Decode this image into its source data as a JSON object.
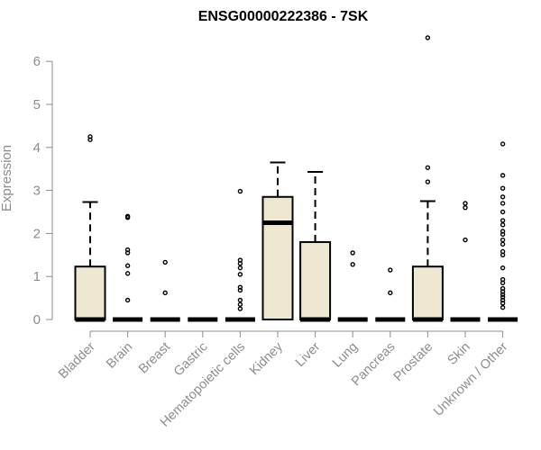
{
  "chart_data": {
    "type": "boxplot",
    "title": "ENSG00000222386 - 7SK",
    "ylabel": "Expression",
    "xlabel": "",
    "ylim": [
      0,
      6.6
    ],
    "yticks": [
      0,
      1,
      2,
      3,
      4,
      5,
      6
    ],
    "box_fill": "#eee8d0",
    "categories": [
      "Bladder",
      "Brain",
      "Breast",
      "Gastric",
      "Hematopoietic cells",
      "Kidney",
      "Liver",
      "Lung",
      "Pancreas",
      "Prostate",
      "Skin",
      "Unknown / Other"
    ],
    "boxes": [
      {
        "q1": 0,
        "median": 0,
        "q3": 1.23,
        "whisker_low": 0,
        "whisker_high": 2.73,
        "outliers": [
          4.18,
          4.25
        ]
      },
      {
        "q1": 0,
        "median": 0,
        "q3": 0,
        "whisker_low": 0,
        "whisker_high": 0,
        "outliers": [
          0.45,
          1.07,
          1.25,
          1.55,
          1.62,
          2.37,
          2.4
        ]
      },
      {
        "q1": 0,
        "median": 0,
        "q3": 0,
        "whisker_low": 0,
        "whisker_high": 0,
        "outliers": [
          0.62,
          1.33
        ]
      },
      {
        "q1": 0,
        "median": 0,
        "q3": 0,
        "whisker_low": 0,
        "whisker_high": 0,
        "outliers": []
      },
      {
        "q1": 0,
        "median": 0,
        "q3": 0,
        "whisker_low": 0,
        "whisker_high": 0,
        "outliers": [
          0.25,
          0.35,
          0.45,
          0.68,
          0.75,
          1.05,
          1.2,
          1.3,
          1.38,
          2.98
        ]
      },
      {
        "q1": 0,
        "median": 2.25,
        "q3": 2.85,
        "whisker_low": 0,
        "whisker_high": 3.65,
        "outliers": []
      },
      {
        "q1": 0,
        "median": 0,
        "q3": 1.8,
        "whisker_low": 0,
        "whisker_high": 3.43,
        "outliers": []
      },
      {
        "q1": 0,
        "median": 0,
        "q3": 0,
        "whisker_low": 0,
        "whisker_high": 0,
        "outliers": [
          1.28,
          1.55
        ]
      },
      {
        "q1": 0,
        "median": 0,
        "q3": 0,
        "whisker_low": 0,
        "whisker_high": 0,
        "outliers": [
          0.62,
          1.15
        ]
      },
      {
        "q1": 0,
        "median": 0,
        "q3": 1.23,
        "whisker_low": 0,
        "whisker_high": 2.75,
        "outliers": [
          3.2,
          3.53,
          6.55
        ]
      },
      {
        "q1": 0,
        "median": 0,
        "q3": 0,
        "whisker_low": 0,
        "whisker_high": 0,
        "outliers": [
          1.85,
          2.6,
          2.7
        ]
      },
      {
        "q1": 0,
        "median": 0,
        "q3": 0,
        "whisker_low": 0,
        "whisker_high": 0,
        "outliers": [
          0.28,
          0.38,
          0.45,
          0.52,
          0.58,
          0.65,
          0.72,
          0.85,
          0.93,
          1.2,
          1.5,
          1.58,
          1.75,
          1.85,
          1.98,
          2.05,
          2.2,
          2.3,
          2.5,
          2.7,
          2.85,
          3.05,
          3.35,
          4.08
        ]
      }
    ]
  }
}
